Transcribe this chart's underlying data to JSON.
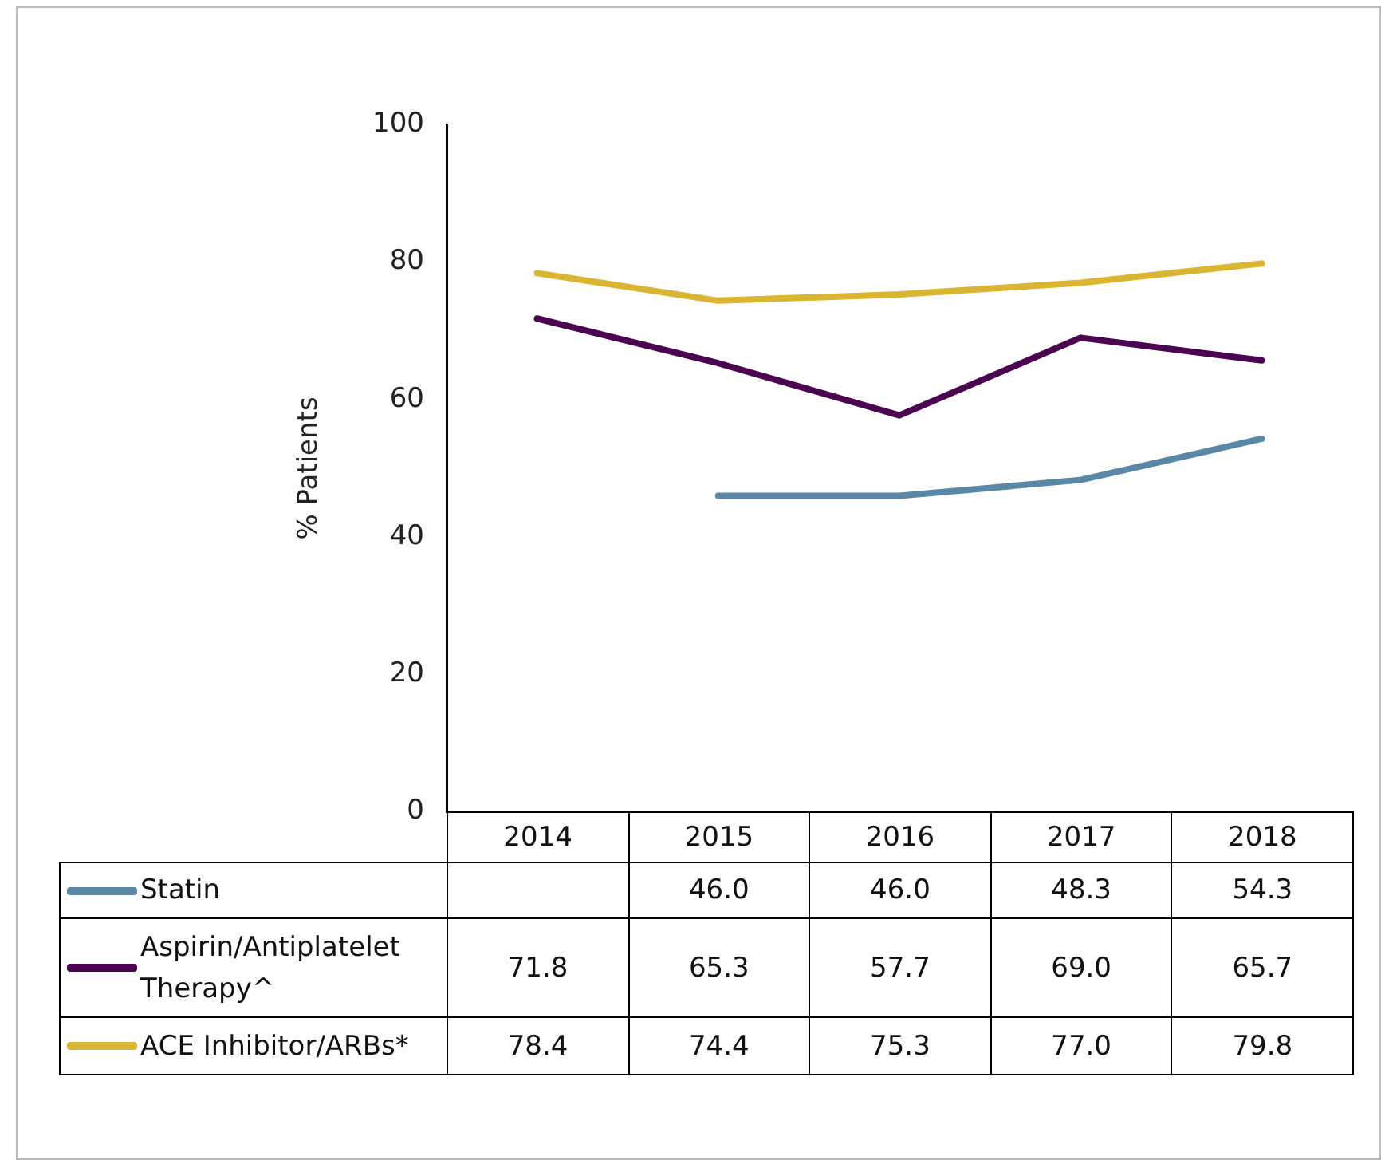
{
  "chart_data": {
    "type": "line",
    "ylabel": "% Patients",
    "categories": [
      "2014",
      "2015",
      "2016",
      "2017",
      "2018"
    ],
    "series": [
      {
        "name": "Statin",
        "color": "#5b87a6",
        "values": [
          null,
          46.0,
          46.0,
          48.3,
          54.3
        ],
        "value_labels": [
          null,
          "46.0",
          "46.0",
          "48.3",
          "54.3"
        ]
      },
      {
        "name": "Aspirin/Antiplatelet Therapy^",
        "color": "#4b0550",
        "values": [
          71.8,
          65.3,
          57.7,
          69.0,
          65.7
        ],
        "value_labels": [
          "71.8",
          "65.3",
          "57.7",
          "69.0",
          "65.7"
        ]
      },
      {
        "name": "ACE Inhibitor/ARBs*",
        "color": "#d9b531",
        "values": [
          78.4,
          74.4,
          75.3,
          77.0,
          79.8
        ],
        "value_labels": [
          "78.4",
          "74.4",
          "75.3",
          "77.0",
          "79.8"
        ]
      }
    ],
    "ylim": [
      0,
      100
    ],
    "yticks": [
      0,
      20,
      40,
      60,
      80,
      100
    ],
    "grid": false,
    "legend": "bottom",
    "marker": "none",
    "line_style": "solid"
  }
}
